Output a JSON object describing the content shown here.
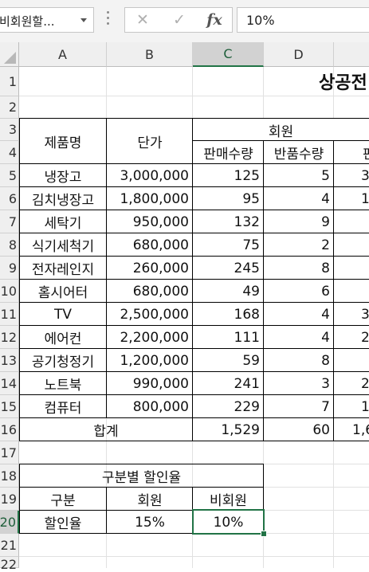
{
  "formula_bar": {
    "name_box": "비회원할...",
    "cancel_icon": "✕",
    "enter_icon": "✓",
    "fx_label": "fx",
    "formula_value": "10%"
  },
  "columns": [
    "A",
    "B",
    "C",
    "D"
  ],
  "rows": [
    "1",
    "2",
    "3",
    "4",
    "5",
    "6",
    "7",
    "8",
    "9",
    "10",
    "11",
    "12",
    "13",
    "14",
    "15",
    "16",
    "17",
    "18",
    "19",
    "20",
    "21",
    "22"
  ],
  "sheet": {
    "title": "상공전",
    "header": {
      "product": "제품명",
      "price": "단가",
      "member": "회원",
      "sales_qty": "판매수량",
      "return_qty": "반품수량",
      "e4_partial": "판"
    },
    "products": [
      {
        "name": "냉장고",
        "price": "3,000,000",
        "sales": "125",
        "returns": "5",
        "e": "3"
      },
      {
        "name": "김치냉장고",
        "price": "1,800,000",
        "sales": "95",
        "returns": "4",
        "e": "1"
      },
      {
        "name": "세탁기",
        "price": "950,000",
        "sales": "132",
        "returns": "9",
        "e": ""
      },
      {
        "name": "식기세척기",
        "price": "680,000",
        "sales": "75",
        "returns": "2",
        "e": ""
      },
      {
        "name": "전자레인지",
        "price": "260,000",
        "sales": "245",
        "returns": "8",
        "e": ""
      },
      {
        "name": "홈시어터",
        "price": "680,000",
        "sales": "49",
        "returns": "6",
        "e": ""
      },
      {
        "name": "TV",
        "price": "2,500,000",
        "sales": "168",
        "returns": "4",
        "e": "3"
      },
      {
        "name": "에어컨",
        "price": "2,200,000",
        "sales": "111",
        "returns": "4",
        "e": "2"
      },
      {
        "name": "공기청정기",
        "price": "1,200,000",
        "sales": "59",
        "returns": "8",
        "e": ""
      },
      {
        "name": "노트북",
        "price": "990,000",
        "sales": "241",
        "returns": "3",
        "e": "2"
      },
      {
        "name": "컴퓨터",
        "price": "800,000",
        "sales": "229",
        "returns": "7",
        "e": "1"
      }
    ],
    "total": {
      "label": "합계",
      "sales": "1,529",
      "returns": "60",
      "e": "1,6"
    },
    "discount_table": {
      "title": "구분별 할인율",
      "col_category": "구분",
      "col_member": "회원",
      "col_nonmember": "비회원",
      "row_label": "할인율",
      "member_rate": "15%",
      "nonmember_rate": "10%"
    }
  },
  "selected_cell": "C20",
  "colors": {
    "accent": "#217346",
    "header_bg": "#efefef",
    "selected_header_bg": "#d2d2d2"
  }
}
